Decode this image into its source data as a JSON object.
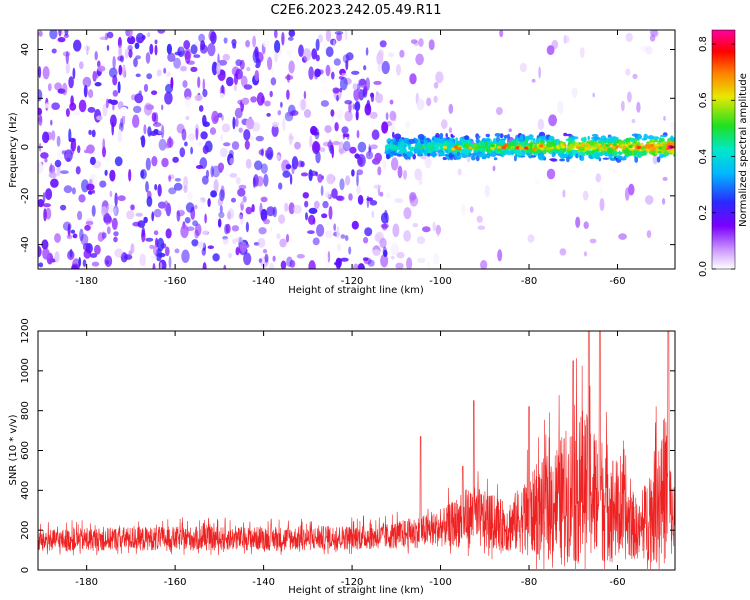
{
  "title": "C2E6.2023.242.05.49.R11",
  "colors": {
    "snr_line": "#ee2222",
    "spectrogram_background_points": "#7a1ff0",
    "axis": "#000000"
  },
  "chart_data": [
    {
      "type": "heatmap",
      "name": "spectrogram",
      "xlabel": "Height of straight line (km)",
      "ylabel": "Frequency (Hz)",
      "xlim": [
        -191,
        -47
      ],
      "ylim": [
        -50,
        48
      ],
      "xticks": [
        -180,
        -160,
        -140,
        -120,
        -100,
        -80,
        -60
      ],
      "yticks": [
        -40,
        -20,
        0,
        20,
        40
      ],
      "colorbar": {
        "label": "Normalized spectral amplitude",
        "range": [
          0.0,
          0.85
        ],
        "ticks": [
          0.0,
          0.2,
          0.4,
          0.6,
          0.8
        ],
        "tick_labels": [
          "0.0",
          "0.2",
          "0.4",
          "0.6",
          "0.8"
        ],
        "colormap": [
          "#ffffff",
          "#7a00ff",
          "#2040ff",
          "#00e0e0",
          "#20e020",
          "#e8e800",
          "#ff7000",
          "#ff0000",
          "#ff00a0"
        ]
      },
      "features": {
        "noise_region_x": [
          -191,
          -112
        ],
        "signal_band_x": [
          -112,
          -47
        ],
        "signal_band_center_hz": 0,
        "signal_band_halfwidth_hz": 4,
        "signal_peak_x": -48,
        "signal_peak_amplitude": 0.85
      }
    },
    {
      "type": "line",
      "name": "snr",
      "xlabel": "Height of straight line (km)",
      "ylabel": "SNR (10 * v/v)",
      "xlim": [
        -191,
        -47
      ],
      "ylim": [
        0,
        1200
      ],
      "xticks": [
        -180,
        -160,
        -140,
        -120,
        -100,
        -80,
        -60
      ],
      "yticks": [
        0,
        200,
        400,
        600,
        800,
        1000,
        1200
      ],
      "series": [
        {
          "color": "#ee2222",
          "envelope": [
            {
              "x": -191,
              "base": 130,
              "spread": 110
            },
            {
              "x": -170,
              "base": 140,
              "spread": 120
            },
            {
              "x": -150,
              "base": 140,
              "spread": 120
            },
            {
              "x": -130,
              "base": 140,
              "spread": 120
            },
            {
              "x": -112,
              "base": 150,
              "spread": 130
            },
            {
              "x": -100,
              "base": 180,
              "spread": 180
            },
            {
              "x": -93,
              "base": 220,
              "spread": 320
            },
            {
              "x": -85,
              "base": 180,
              "spread": 250
            },
            {
              "x": -75,
              "base": 250,
              "spread": 550
            },
            {
              "x": -68,
              "base": 300,
              "spread": 800
            },
            {
              "x": -62,
              "base": 250,
              "spread": 600
            },
            {
              "x": -55,
              "base": 150,
              "spread": 280
            },
            {
              "x": -49,
              "base": 300,
              "spread": 800
            },
            {
              "x": -47,
              "base": 150,
              "spread": 200
            }
          ],
          "peaks": [
            {
              "x": -104.5,
              "y": 670
            },
            {
              "x": -95,
              "y": 520
            },
            {
              "x": -92.5,
              "y": 850
            },
            {
              "x": -80,
              "y": 820
            },
            {
              "x": -70,
              "y": 1050
            },
            {
              "x": -66.5,
              "y": 1200
            },
            {
              "x": -64,
              "y": 1200
            },
            {
              "x": -48.5,
              "y": 1200
            }
          ]
        }
      ]
    }
  ]
}
